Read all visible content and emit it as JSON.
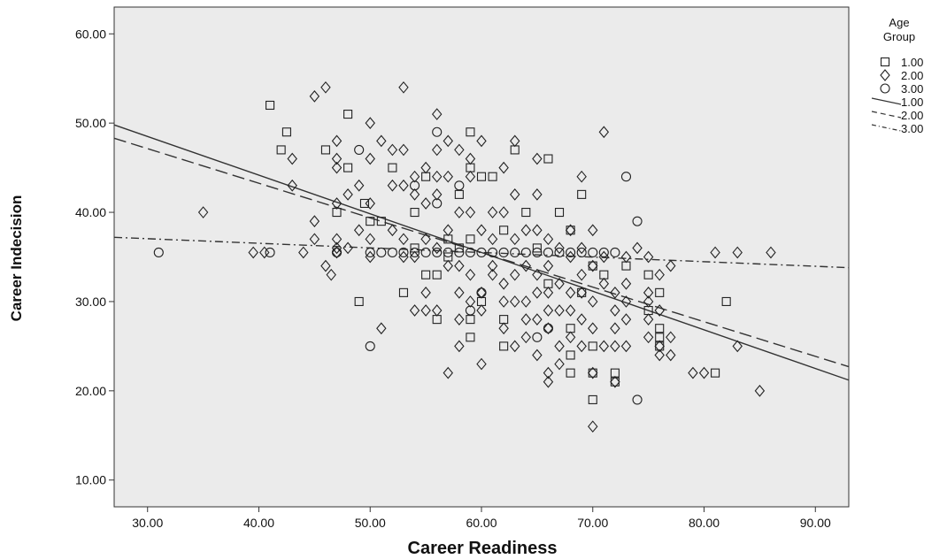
{
  "chart_data": {
    "type": "scatter",
    "xlabel": "Career Readiness",
    "ylabel": "Career Indecision",
    "xlim": [
      27,
      93
    ],
    "ylim": [
      7,
      63
    ],
    "xticks": [
      30,
      40,
      50,
      60,
      70,
      80,
      90
    ],
    "yticks": [
      10,
      20,
      30,
      40,
      50,
      60
    ],
    "xtick_labels": [
      "30.00",
      "40.00",
      "50.00",
      "60.00",
      "70.00",
      "80.00",
      "90.00"
    ],
    "ytick_labels": [
      "10.00",
      "20.00",
      "30.00",
      "40.00",
      "50.00",
      "60.00"
    ],
    "grid": false,
    "background": "#ebebeb",
    "legend": {
      "title": "Age Group",
      "placement": "right",
      "entries": [
        {
          "label": "1.00",
          "kind": "marker",
          "marker": "square"
        },
        {
          "label": "2.00",
          "kind": "marker",
          "marker": "diamond"
        },
        {
          "label": "3.00",
          "kind": "marker",
          "marker": "circle"
        },
        {
          "label": "1.00",
          "kind": "line",
          "style": "solid"
        },
        {
          "label": "2.00",
          "kind": "line",
          "style": "dashed"
        },
        {
          "label": "3.00",
          "kind": "line",
          "style": "dashdot"
        }
      ]
    },
    "series": [
      {
        "name": "1.00",
        "marker": "square",
        "points": [
          [
            41,
            52
          ],
          [
            42,
            47
          ],
          [
            42.5,
            49
          ],
          [
            46,
            47
          ],
          [
            47,
            40
          ],
          [
            48,
            51
          ],
          [
            48,
            45
          ],
          [
            49,
            30
          ],
          [
            49.5,
            41
          ],
          [
            50,
            39
          ],
          [
            51,
            39
          ],
          [
            52,
            45
          ],
          [
            53,
            31
          ],
          [
            54,
            40
          ],
          [
            54,
            36
          ],
          [
            55,
            44
          ],
          [
            55,
            33
          ],
          [
            56,
            33
          ],
          [
            56,
            28
          ],
          [
            57,
            37
          ],
          [
            57,
            35
          ],
          [
            58,
            42
          ],
          [
            58,
            36
          ],
          [
            59,
            49
          ],
          [
            59,
            45
          ],
          [
            59,
            37
          ],
          [
            59,
            28
          ],
          [
            59,
            26
          ],
          [
            60,
            44
          ],
          [
            60,
            30
          ],
          [
            61,
            44
          ],
          [
            62,
            38
          ],
          [
            62,
            28
          ],
          [
            62,
            25
          ],
          [
            63,
            47
          ],
          [
            64,
            40
          ],
          [
            65,
            36
          ],
          [
            66,
            46
          ],
          [
            66,
            32
          ],
          [
            67,
            40
          ],
          [
            68,
            38
          ],
          [
            68,
            27
          ],
          [
            68,
            24
          ],
          [
            68,
            22
          ],
          [
            69,
            42
          ],
          [
            69,
            31
          ],
          [
            70,
            34
          ],
          [
            70,
            25
          ],
          [
            70,
            22
          ],
          [
            70,
            19
          ],
          [
            71,
            33
          ],
          [
            72,
            21
          ],
          [
            72,
            22
          ],
          [
            73,
            34
          ],
          [
            75,
            33
          ],
          [
            75,
            29
          ],
          [
            76,
            31
          ],
          [
            76,
            27
          ],
          [
            76,
            26
          ],
          [
            76,
            25
          ],
          [
            81,
            22
          ],
          [
            82,
            30
          ]
        ]
      },
      {
        "name": "2.00",
        "marker": "diamond",
        "points": [
          [
            35,
            40
          ],
          [
            39.5,
            35.5
          ],
          [
            40.5,
            35.5
          ],
          [
            43,
            46
          ],
          [
            43,
            43
          ],
          [
            44,
            35.5
          ],
          [
            45,
            53
          ],
          [
            45,
            39
          ],
          [
            45,
            37
          ],
          [
            46,
            54
          ],
          [
            46,
            34
          ],
          [
            46.5,
            33
          ],
          [
            47,
            48
          ],
          [
            47,
            46
          ],
          [
            47,
            45
          ],
          [
            47,
            41
          ],
          [
            47,
            37
          ],
          [
            47,
            36
          ],
          [
            47,
            35.5
          ],
          [
            48,
            42
          ],
          [
            48,
            36
          ],
          [
            49,
            43
          ],
          [
            49,
            38
          ],
          [
            50,
            50
          ],
          [
            50,
            46
          ],
          [
            50,
            41
          ],
          [
            50,
            37
          ],
          [
            50,
            35
          ],
          [
            51,
            48
          ],
          [
            51,
            27
          ],
          [
            52,
            47
          ],
          [
            52,
            43
          ],
          [
            52,
            38
          ],
          [
            53,
            54
          ],
          [
            53,
            47
          ],
          [
            53,
            43
          ],
          [
            53,
            37
          ],
          [
            53,
            35
          ],
          [
            54,
            44
          ],
          [
            54,
            42
          ],
          [
            54,
            35
          ],
          [
            54,
            29
          ],
          [
            55,
            45
          ],
          [
            55,
            41
          ],
          [
            55,
            37
          ],
          [
            55,
            31
          ],
          [
            55,
            29
          ],
          [
            56,
            51
          ],
          [
            56,
            47
          ],
          [
            56,
            44
          ],
          [
            56,
            42
          ],
          [
            56,
            36
          ],
          [
            56,
            29
          ],
          [
            57,
            48
          ],
          [
            57,
            44
          ],
          [
            57,
            38
          ],
          [
            57,
            34
          ],
          [
            57,
            22
          ],
          [
            58,
            47
          ],
          [
            58,
            40
          ],
          [
            58,
            34
          ],
          [
            58,
            31
          ],
          [
            58,
            28
          ],
          [
            58,
            25
          ],
          [
            59,
            46
          ],
          [
            59,
            44
          ],
          [
            59,
            40
          ],
          [
            59,
            33
          ],
          [
            59,
            30
          ],
          [
            60,
            48
          ],
          [
            60,
            38
          ],
          [
            60,
            31
          ],
          [
            60,
            29
          ],
          [
            60,
            23
          ],
          [
            61,
            40
          ],
          [
            61,
            37
          ],
          [
            61,
            34
          ],
          [
            61,
            33
          ],
          [
            62,
            45
          ],
          [
            62,
            40
          ],
          [
            62,
            32
          ],
          [
            62,
            30
          ],
          [
            62,
            27
          ],
          [
            63,
            48
          ],
          [
            63,
            42
          ],
          [
            63,
            37
          ],
          [
            63,
            33
          ],
          [
            63,
            30
          ],
          [
            63,
            25
          ],
          [
            64,
            38
          ],
          [
            64,
            34
          ],
          [
            64,
            30
          ],
          [
            64,
            28
          ],
          [
            64,
            26
          ],
          [
            65,
            46
          ],
          [
            65,
            42
          ],
          [
            65,
            38
          ],
          [
            65,
            33
          ],
          [
            65,
            31
          ],
          [
            65,
            28
          ],
          [
            65,
            24
          ],
          [
            66,
            37
          ],
          [
            66,
            34
          ],
          [
            66,
            31
          ],
          [
            66,
            29
          ],
          [
            66,
            27
          ],
          [
            66,
            22
          ],
          [
            66,
            21
          ],
          [
            67,
            36
          ],
          [
            67,
            32
          ],
          [
            67,
            29
          ],
          [
            67,
            25
          ],
          [
            67,
            23
          ],
          [
            68,
            38
          ],
          [
            68,
            35
          ],
          [
            68,
            31
          ],
          [
            68,
            29
          ],
          [
            68,
            26
          ],
          [
            69,
            44
          ],
          [
            69,
            36
          ],
          [
            69,
            33
          ],
          [
            69,
            31
          ],
          [
            69,
            28
          ],
          [
            69,
            25
          ],
          [
            70,
            38
          ],
          [
            70,
            34
          ],
          [
            70,
            30
          ],
          [
            70,
            27
          ],
          [
            70,
            22
          ],
          [
            70,
            16
          ],
          [
            71,
            49
          ],
          [
            71,
            35
          ],
          [
            71,
            32
          ],
          [
            71,
            25
          ],
          [
            72,
            31
          ],
          [
            72,
            29
          ],
          [
            72,
            27
          ],
          [
            72,
            25
          ],
          [
            72,
            21
          ],
          [
            73,
            35
          ],
          [
            73,
            32
          ],
          [
            73,
            30
          ],
          [
            73,
            28
          ],
          [
            73,
            25
          ],
          [
            74,
            36
          ],
          [
            75,
            35
          ],
          [
            75,
            31
          ],
          [
            75,
            30
          ],
          [
            75,
            28
          ],
          [
            75,
            26
          ],
          [
            76,
            33
          ],
          [
            76,
            29
          ],
          [
            76,
            25
          ],
          [
            76,
            24
          ],
          [
            77,
            34
          ],
          [
            77,
            26
          ],
          [
            77,
            24
          ],
          [
            79,
            22
          ],
          [
            80,
            22
          ],
          [
            81,
            35.5
          ],
          [
            83,
            35.5
          ],
          [
            83,
            25
          ],
          [
            85,
            20
          ],
          [
            86,
            35.5
          ]
        ]
      },
      {
        "name": "3.00",
        "marker": "circle",
        "points": [
          [
            31,
            35.5
          ],
          [
            41,
            35.5
          ],
          [
            47,
            35.5
          ],
          [
            49,
            47
          ],
          [
            50,
            25
          ],
          [
            50,
            35.5
          ],
          [
            51,
            35.5
          ],
          [
            52,
            35.5
          ],
          [
            53,
            35.5
          ],
          [
            54,
            35.5
          ],
          [
            54,
            43
          ],
          [
            55,
            35.5
          ],
          [
            56,
            35.5
          ],
          [
            56,
            41
          ],
          [
            56,
            49
          ],
          [
            57,
            35.5
          ],
          [
            58,
            35.5
          ],
          [
            58,
            43
          ],
          [
            59,
            35.5
          ],
          [
            59,
            29
          ],
          [
            60,
            35.5
          ],
          [
            60,
            31
          ],
          [
            61,
            35.5
          ],
          [
            62,
            35.5
          ],
          [
            63,
            35.5
          ],
          [
            64,
            35.5
          ],
          [
            65,
            35.5
          ],
          [
            65,
            26
          ],
          [
            66,
            35.5
          ],
          [
            66,
            27
          ],
          [
            67,
            35.5
          ],
          [
            68,
            35.5
          ],
          [
            69,
            35.5
          ],
          [
            70,
            35.5
          ],
          [
            71,
            35.5
          ],
          [
            72,
            35.5
          ],
          [
            73,
            44
          ],
          [
            74,
            39
          ],
          [
            74,
            19
          ]
        ]
      }
    ],
    "fit_lines": [
      {
        "name": "1.00",
        "style": "solid",
        "x": [
          27,
          93
        ],
        "y": [
          49.8,
          21.2
        ]
      },
      {
        "name": "2.00",
        "style": "dashed",
        "x": [
          27,
          93
        ],
        "y": [
          48.3,
          22.7
        ]
      },
      {
        "name": "3.00",
        "style": "dashdot",
        "x": [
          27,
          93
        ],
        "y": [
          37.2,
          33.8
        ]
      }
    ]
  }
}
